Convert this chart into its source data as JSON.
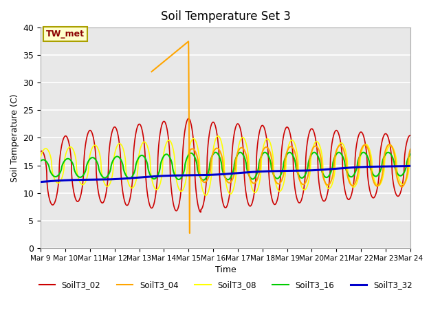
{
  "title": "Soil Temperature Set 3",
  "xlabel": "Time",
  "ylabel": "Soil Temperature (C)",
  "annotation": "TW_met",
  "ylim": [
    0,
    40
  ],
  "xlim": [
    0,
    15
  ],
  "bg_color": "#e8e8e8",
  "series_colors": {
    "SoilT3_02": "#cc0000",
    "SoilT3_04": "#ffa500",
    "SoilT3_08": "#ffff00",
    "SoilT3_16": "#00cc00",
    "SoilT3_32": "#0000cc"
  },
  "xtick_labels": [
    "Mar 9",
    "Mar 10",
    "Mar 11",
    "Mar 12",
    "Mar 13",
    "Mar 14",
    "Mar 15",
    "Mar 16",
    "Mar 17",
    "Mar 18",
    "Mar 19",
    "Mar 20",
    "Mar 21",
    "Mar 22",
    "Mar 23",
    "Mar 24"
  ],
  "ytick_labels": [
    0,
    5,
    10,
    15,
    20,
    25,
    30,
    35,
    40
  ]
}
